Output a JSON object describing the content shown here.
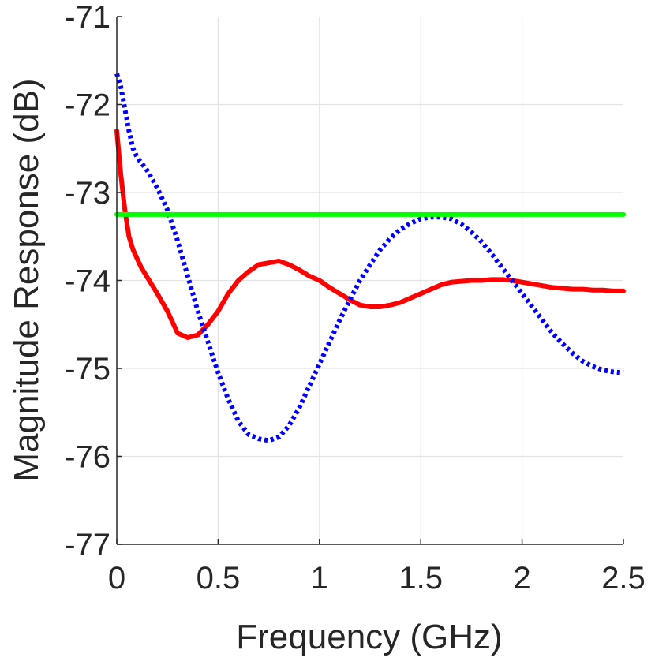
{
  "chart_data": {
    "type": "line",
    "title": "",
    "xlabel": "Frequency (GHz)",
    "ylabel": "Magnitude Response (dB)",
    "xlim": [
      0,
      2.5
    ],
    "ylim": [
      -77,
      -71
    ],
    "xticks": [
      0,
      0.5,
      1,
      1.5,
      2,
      2.5
    ],
    "xtick_labels": [
      "0",
      "0.5",
      "1",
      "1.5",
      "2",
      "2.5"
    ],
    "yticks": [
      -77,
      -76,
      -75,
      -74,
      -73,
      -72,
      -71
    ],
    "ytick_labels": [
      "-77",
      "-76",
      "-75",
      "-74",
      "-73",
      "-72",
      "-71"
    ],
    "grid": true,
    "legend": false,
    "series": [
      {
        "color": "#ff0000",
        "style": "solid",
        "x": [
          0,
          0.02,
          0.04,
          0.06,
          0.08,
          0.12,
          0.16,
          0.2,
          0.25,
          0.3,
          0.35,
          0.4,
          0.45,
          0.5,
          0.55,
          0.6,
          0.65,
          0.7,
          0.75,
          0.8,
          0.85,
          0.9,
          0.95,
          1.0,
          1.05,
          1.1,
          1.15,
          1.2,
          1.25,
          1.3,
          1.35,
          1.4,
          1.45,
          1.5,
          1.55,
          1.6,
          1.65,
          1.7,
          1.75,
          1.8,
          1.85,
          1.9,
          1.95,
          2.0,
          2.05,
          2.1,
          2.15,
          2.2,
          2.25,
          2.3,
          2.35,
          2.4,
          2.45,
          2.5
        ],
        "y": [
          -72.3,
          -72.8,
          -73.2,
          -73.5,
          -73.65,
          -73.85,
          -74.0,
          -74.15,
          -74.35,
          -74.6,
          -74.65,
          -74.62,
          -74.5,
          -74.35,
          -74.15,
          -74.0,
          -73.9,
          -73.82,
          -73.8,
          -73.78,
          -73.82,
          -73.88,
          -73.95,
          -74.0,
          -74.08,
          -74.15,
          -74.22,
          -74.28,
          -74.3,
          -74.3,
          -74.28,
          -74.25,
          -74.2,
          -74.15,
          -74.1,
          -74.05,
          -74.02,
          -74.01,
          -74.0,
          -74.0,
          -73.99,
          -73.99,
          -74.0,
          -74.02,
          -74.04,
          -74.06,
          -74.08,
          -74.09,
          -74.1,
          -74.1,
          -74.11,
          -74.11,
          -74.12,
          -74.12
        ]
      },
      {
        "color": "#0000ff",
        "style": "dotted",
        "x": [
          0,
          0.02,
          0.04,
          0.06,
          0.08,
          0.1,
          0.15,
          0.2,
          0.25,
          0.3,
          0.35,
          0.4,
          0.45,
          0.5,
          0.55,
          0.6,
          0.65,
          0.7,
          0.75,
          0.8,
          0.85,
          0.9,
          0.95,
          1.0,
          1.05,
          1.1,
          1.15,
          1.2,
          1.25,
          1.3,
          1.35,
          1.4,
          1.45,
          1.5,
          1.55,
          1.6,
          1.65,
          1.7,
          1.75,
          1.8,
          1.85,
          1.9,
          1.95,
          2.0,
          2.05,
          2.1,
          2.15,
          2.2,
          2.25,
          2.3,
          2.35,
          2.4,
          2.45,
          2.5
        ],
        "y": [
          -71.65,
          -71.8,
          -72.05,
          -72.3,
          -72.5,
          -72.6,
          -72.75,
          -72.95,
          -73.2,
          -73.55,
          -73.95,
          -74.35,
          -74.7,
          -75.05,
          -75.35,
          -75.6,
          -75.75,
          -75.8,
          -75.82,
          -75.78,
          -75.65,
          -75.45,
          -75.2,
          -74.95,
          -74.7,
          -74.45,
          -74.22,
          -74.0,
          -73.82,
          -73.65,
          -73.52,
          -73.42,
          -73.35,
          -73.3,
          -73.28,
          -73.28,
          -73.3,
          -73.36,
          -73.45,
          -73.56,
          -73.7,
          -73.85,
          -74.0,
          -74.15,
          -74.3,
          -74.45,
          -74.6,
          -74.72,
          -74.83,
          -74.92,
          -74.98,
          -75.02,
          -75.04,
          -75.05
        ]
      },
      {
        "color": "#00ff00",
        "style": "solid",
        "x": [
          0,
          2.5
        ],
        "y": [
          -73.25,
          -73.25
        ]
      }
    ]
  }
}
